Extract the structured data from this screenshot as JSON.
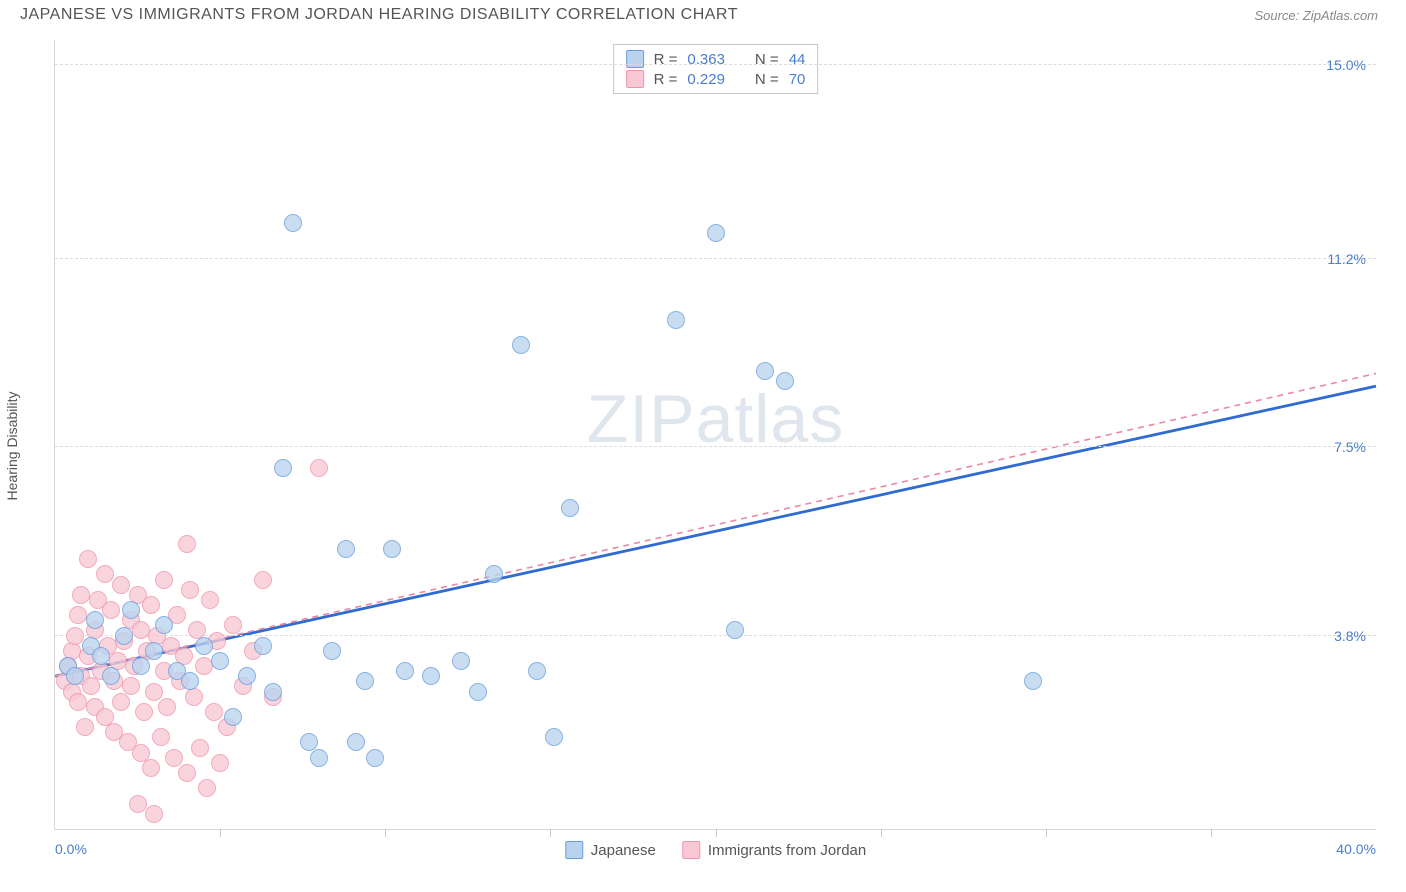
{
  "title": "JAPANESE VS IMMIGRANTS FROM JORDAN HEARING DISABILITY CORRELATION CHART",
  "source_label": "Source: ZipAtlas.com",
  "y_axis_title": "Hearing Disability",
  "watermark": {
    "bold": "ZIP",
    "light": "atlas"
  },
  "chart": {
    "type": "scatter",
    "xlim": [
      0,
      40
    ],
    "ylim": [
      0,
      15.5
    ],
    "x_origin_label": "0.0%",
    "x_max_label": "40.0%",
    "y_ticks": [
      3.8,
      7.5,
      11.2,
      15.0
    ],
    "y_tick_labels": [
      "3.8%",
      "7.5%",
      "11.2%",
      "15.0%"
    ],
    "x_ticks": [
      5,
      10,
      15,
      20,
      25,
      30,
      35
    ],
    "grid_color": "#dcdcdc",
    "background": "#ffffff",
    "marker_radius": 9,
    "series": [
      {
        "name": "Japanese",
        "fill": "#b9d3ef",
        "stroke": "#6a9edb",
        "R": "0.363",
        "N": "44",
        "trend": {
          "x1": 0,
          "y1": 3.0,
          "x2": 40,
          "y2": 8.7,
          "stroke": "#2f6bd0",
          "width": 2.8,
          "dash": "none"
        },
        "points": [
          [
            0.4,
            3.2
          ],
          [
            0.6,
            3.0
          ],
          [
            1.1,
            3.6
          ],
          [
            1.2,
            4.1
          ],
          [
            1.4,
            3.4
          ],
          [
            1.7,
            3.0
          ],
          [
            2.1,
            3.8
          ],
          [
            2.3,
            4.3
          ],
          [
            2.6,
            3.2
          ],
          [
            3.0,
            3.5
          ],
          [
            3.3,
            4.0
          ],
          [
            3.7,
            3.1
          ],
          [
            4.1,
            2.9
          ],
          [
            4.5,
            3.6
          ],
          [
            5.0,
            3.3
          ],
          [
            5.4,
            2.2
          ],
          [
            5.8,
            3.0
          ],
          [
            6.3,
            3.6
          ],
          [
            6.6,
            2.7
          ],
          [
            6.9,
            7.1
          ],
          [
            7.2,
            11.9
          ],
          [
            7.7,
            1.7
          ],
          [
            8.0,
            1.4
          ],
          [
            8.4,
            3.5
          ],
          [
            8.8,
            5.5
          ],
          [
            9.1,
            1.7
          ],
          [
            9.4,
            2.9
          ],
          [
            9.7,
            1.4
          ],
          [
            10.2,
            5.5
          ],
          [
            10.6,
            3.1
          ],
          [
            11.4,
            3.0
          ],
          [
            12.3,
            3.3
          ],
          [
            12.8,
            2.7
          ],
          [
            13.3,
            5.0
          ],
          [
            14.1,
            9.5
          ],
          [
            14.6,
            3.1
          ],
          [
            15.1,
            1.8
          ],
          [
            15.6,
            6.3
          ],
          [
            18.8,
            10.0
          ],
          [
            20.0,
            11.7
          ],
          [
            20.6,
            3.9
          ],
          [
            21.5,
            9.0
          ],
          [
            22.1,
            8.8
          ],
          [
            29.6,
            2.9
          ]
        ]
      },
      {
        "name": "Immigrants from Jordan",
        "fill": "#f8c9d4",
        "stroke": "#ef94ad",
        "R": "0.229",
        "N": "70",
        "trend": {
          "x1": 0,
          "y1": 3.0,
          "x2": 40,
          "y2": 8.95,
          "stroke": "#e88aa3",
          "width": 1.6,
          "dash": "6,5"
        },
        "points": [
          [
            0.3,
            2.9
          ],
          [
            0.4,
            3.2
          ],
          [
            0.5,
            3.5
          ],
          [
            0.5,
            2.7
          ],
          [
            0.6,
            3.8
          ],
          [
            0.7,
            2.5
          ],
          [
            0.7,
            4.2
          ],
          [
            0.8,
            3.0
          ],
          [
            0.8,
            4.6
          ],
          [
            0.9,
            2.0
          ],
          [
            1.0,
            3.4
          ],
          [
            1.0,
            5.3
          ],
          [
            1.1,
            2.8
          ],
          [
            1.2,
            3.9
          ],
          [
            1.2,
            2.4
          ],
          [
            1.3,
            4.5
          ],
          [
            1.4,
            3.1
          ],
          [
            1.5,
            5.0
          ],
          [
            1.5,
            2.2
          ],
          [
            1.6,
            3.6
          ],
          [
            1.7,
            4.3
          ],
          [
            1.8,
            2.9
          ],
          [
            1.8,
            1.9
          ],
          [
            1.9,
            3.3
          ],
          [
            2.0,
            4.8
          ],
          [
            2.0,
            2.5
          ],
          [
            2.1,
            3.7
          ],
          [
            2.2,
            1.7
          ],
          [
            2.3,
            4.1
          ],
          [
            2.3,
            2.8
          ],
          [
            2.4,
            3.2
          ],
          [
            2.5,
            4.6
          ],
          [
            2.6,
            1.5
          ],
          [
            2.6,
            3.9
          ],
          [
            2.7,
            2.3
          ],
          [
            2.8,
            3.5
          ],
          [
            2.9,
            1.2
          ],
          [
            2.9,
            4.4
          ],
          [
            3.0,
            2.7
          ],
          [
            3.1,
            3.8
          ],
          [
            3.2,
            1.8
          ],
          [
            3.3,
            3.1
          ],
          [
            3.3,
            4.9
          ],
          [
            3.4,
            2.4
          ],
          [
            3.5,
            3.6
          ],
          [
            3.6,
            1.4
          ],
          [
            3.7,
            4.2
          ],
          [
            3.8,
            2.9
          ],
          [
            3.9,
            3.4
          ],
          [
            4.0,
            1.1
          ],
          [
            4.1,
            4.7
          ],
          [
            4.2,
            2.6
          ],
          [
            4.3,
            3.9
          ],
          [
            4.4,
            1.6
          ],
          [
            4.5,
            3.2
          ],
          [
            4.6,
            0.8
          ],
          [
            4.7,
            4.5
          ],
          [
            4.8,
            2.3
          ],
          [
            4.9,
            3.7
          ],
          [
            5.0,
            1.3
          ],
          [
            5.2,
            2.0
          ],
          [
            5.4,
            4.0
          ],
          [
            5.7,
            2.8
          ],
          [
            6.0,
            3.5
          ],
          [
            6.3,
            4.9
          ],
          [
            6.6,
            2.6
          ],
          [
            4.0,
            5.6
          ],
          [
            2.5,
            0.5
          ],
          [
            3.0,
            0.3
          ],
          [
            8.0,
            7.1
          ]
        ]
      }
    ]
  },
  "stats_legend_header": {
    "R_label": "R =",
    "N_label": "N ="
  },
  "bottom_legend": [
    "Japanese",
    "Immigrants from Jordan"
  ]
}
